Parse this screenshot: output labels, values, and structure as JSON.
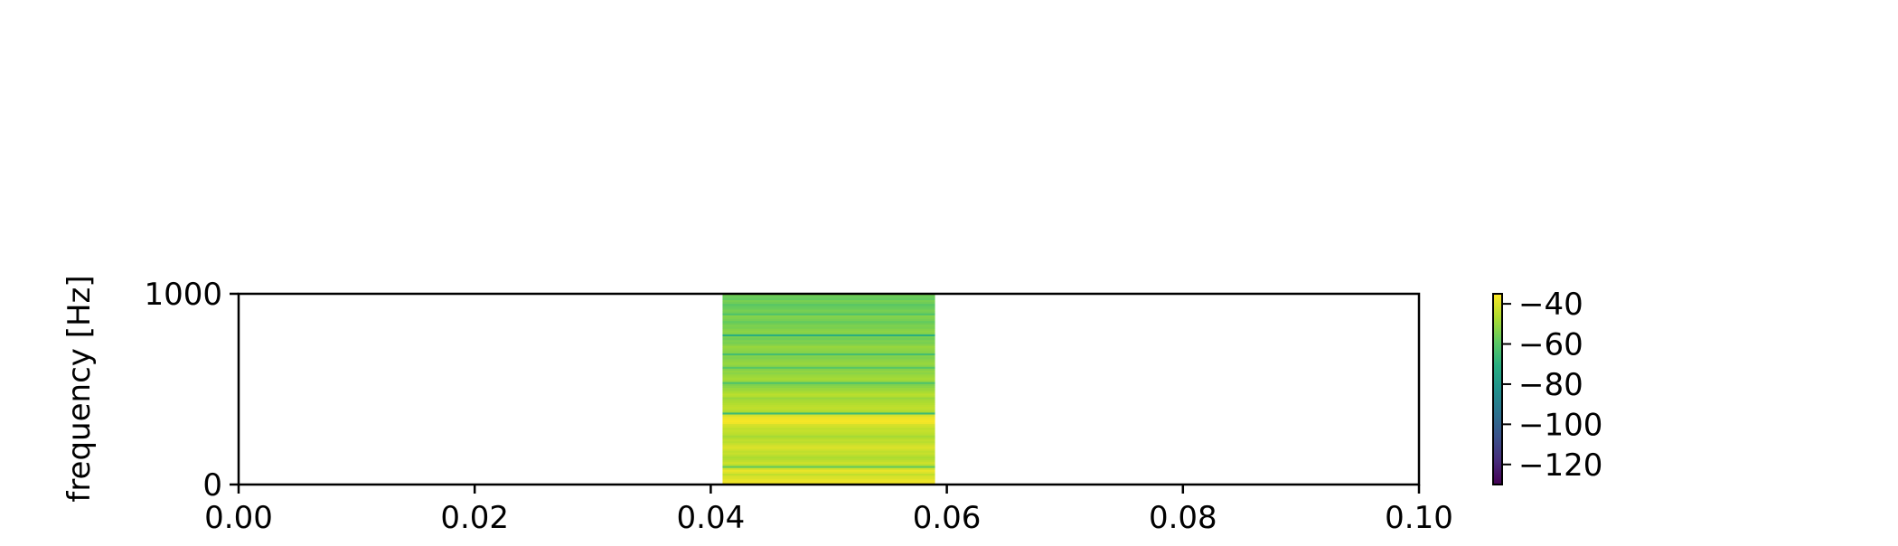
{
  "chart_data": {
    "type": "heatmap",
    "title": "",
    "xlabel": "",
    "ylabel": "frequency [Hz]",
    "xlim": [
      0.0,
      0.1
    ],
    "ylim": [
      0,
      1000
    ],
    "x_ticks": [
      0.0,
      0.02,
      0.04,
      0.06,
      0.08,
      0.1
    ],
    "x_tick_labels": [
      "0.00",
      "0.02",
      "0.04",
      "0.06",
      "0.08",
      "0.10"
    ],
    "y_ticks": [
      0,
      1000
    ],
    "y_tick_labels": [
      "0",
      "1000"
    ],
    "grid": false,
    "colormap": "viridis",
    "data_region": {
      "t_start": 0.041,
      "t_end": 0.059,
      "f_min": 0,
      "f_max": 1000
    },
    "row_values_db": [
      -38,
      -37,
      -38,
      -40,
      -41,
      -44,
      -40,
      -38,
      -42,
      -58,
      -45,
      -42,
      -44,
      -46,
      -47,
      -45,
      -43,
      -44,
      -42,
      -40,
      -41,
      -43,
      -45,
      -44,
      -46,
      -48,
      -45,
      -44,
      -43,
      -44,
      -42,
      -41,
      -37,
      -36,
      -37,
      -38,
      -41,
      -66,
      -47,
      -45,
      -44,
      -45,
      -46,
      -47,
      -48,
      -50,
      -46,
      -45,
      -47,
      -49,
      -50,
      -52,
      -54,
      -62,
      -50,
      -48,
      -49,
      -50,
      -52,
      -51,
      -53,
      -60,
      -52,
      -50,
      -51,
      -52,
      -54,
      -53,
      -64,
      -53,
      -52,
      -51,
      -50,
      -53,
      -55,
      -54,
      -56,
      -55,
      -70,
      -53,
      -52,
      -53,
      -55,
      -54,
      -56,
      -58,
      -55,
      -54,
      -53,
      -62,
      -56,
      -55,
      -57,
      -58,
      -60,
      -56,
      -55,
      -58,
      -57,
      -56
    ],
    "colorbar": {
      "vmin": -130,
      "vmax": -35,
      "ticks": [
        -40,
        -60,
        -80,
        -100,
        -120
      ],
      "tick_labels": [
        "−40",
        "−60",
        "−80",
        "−100",
        "−120"
      ]
    }
  }
}
